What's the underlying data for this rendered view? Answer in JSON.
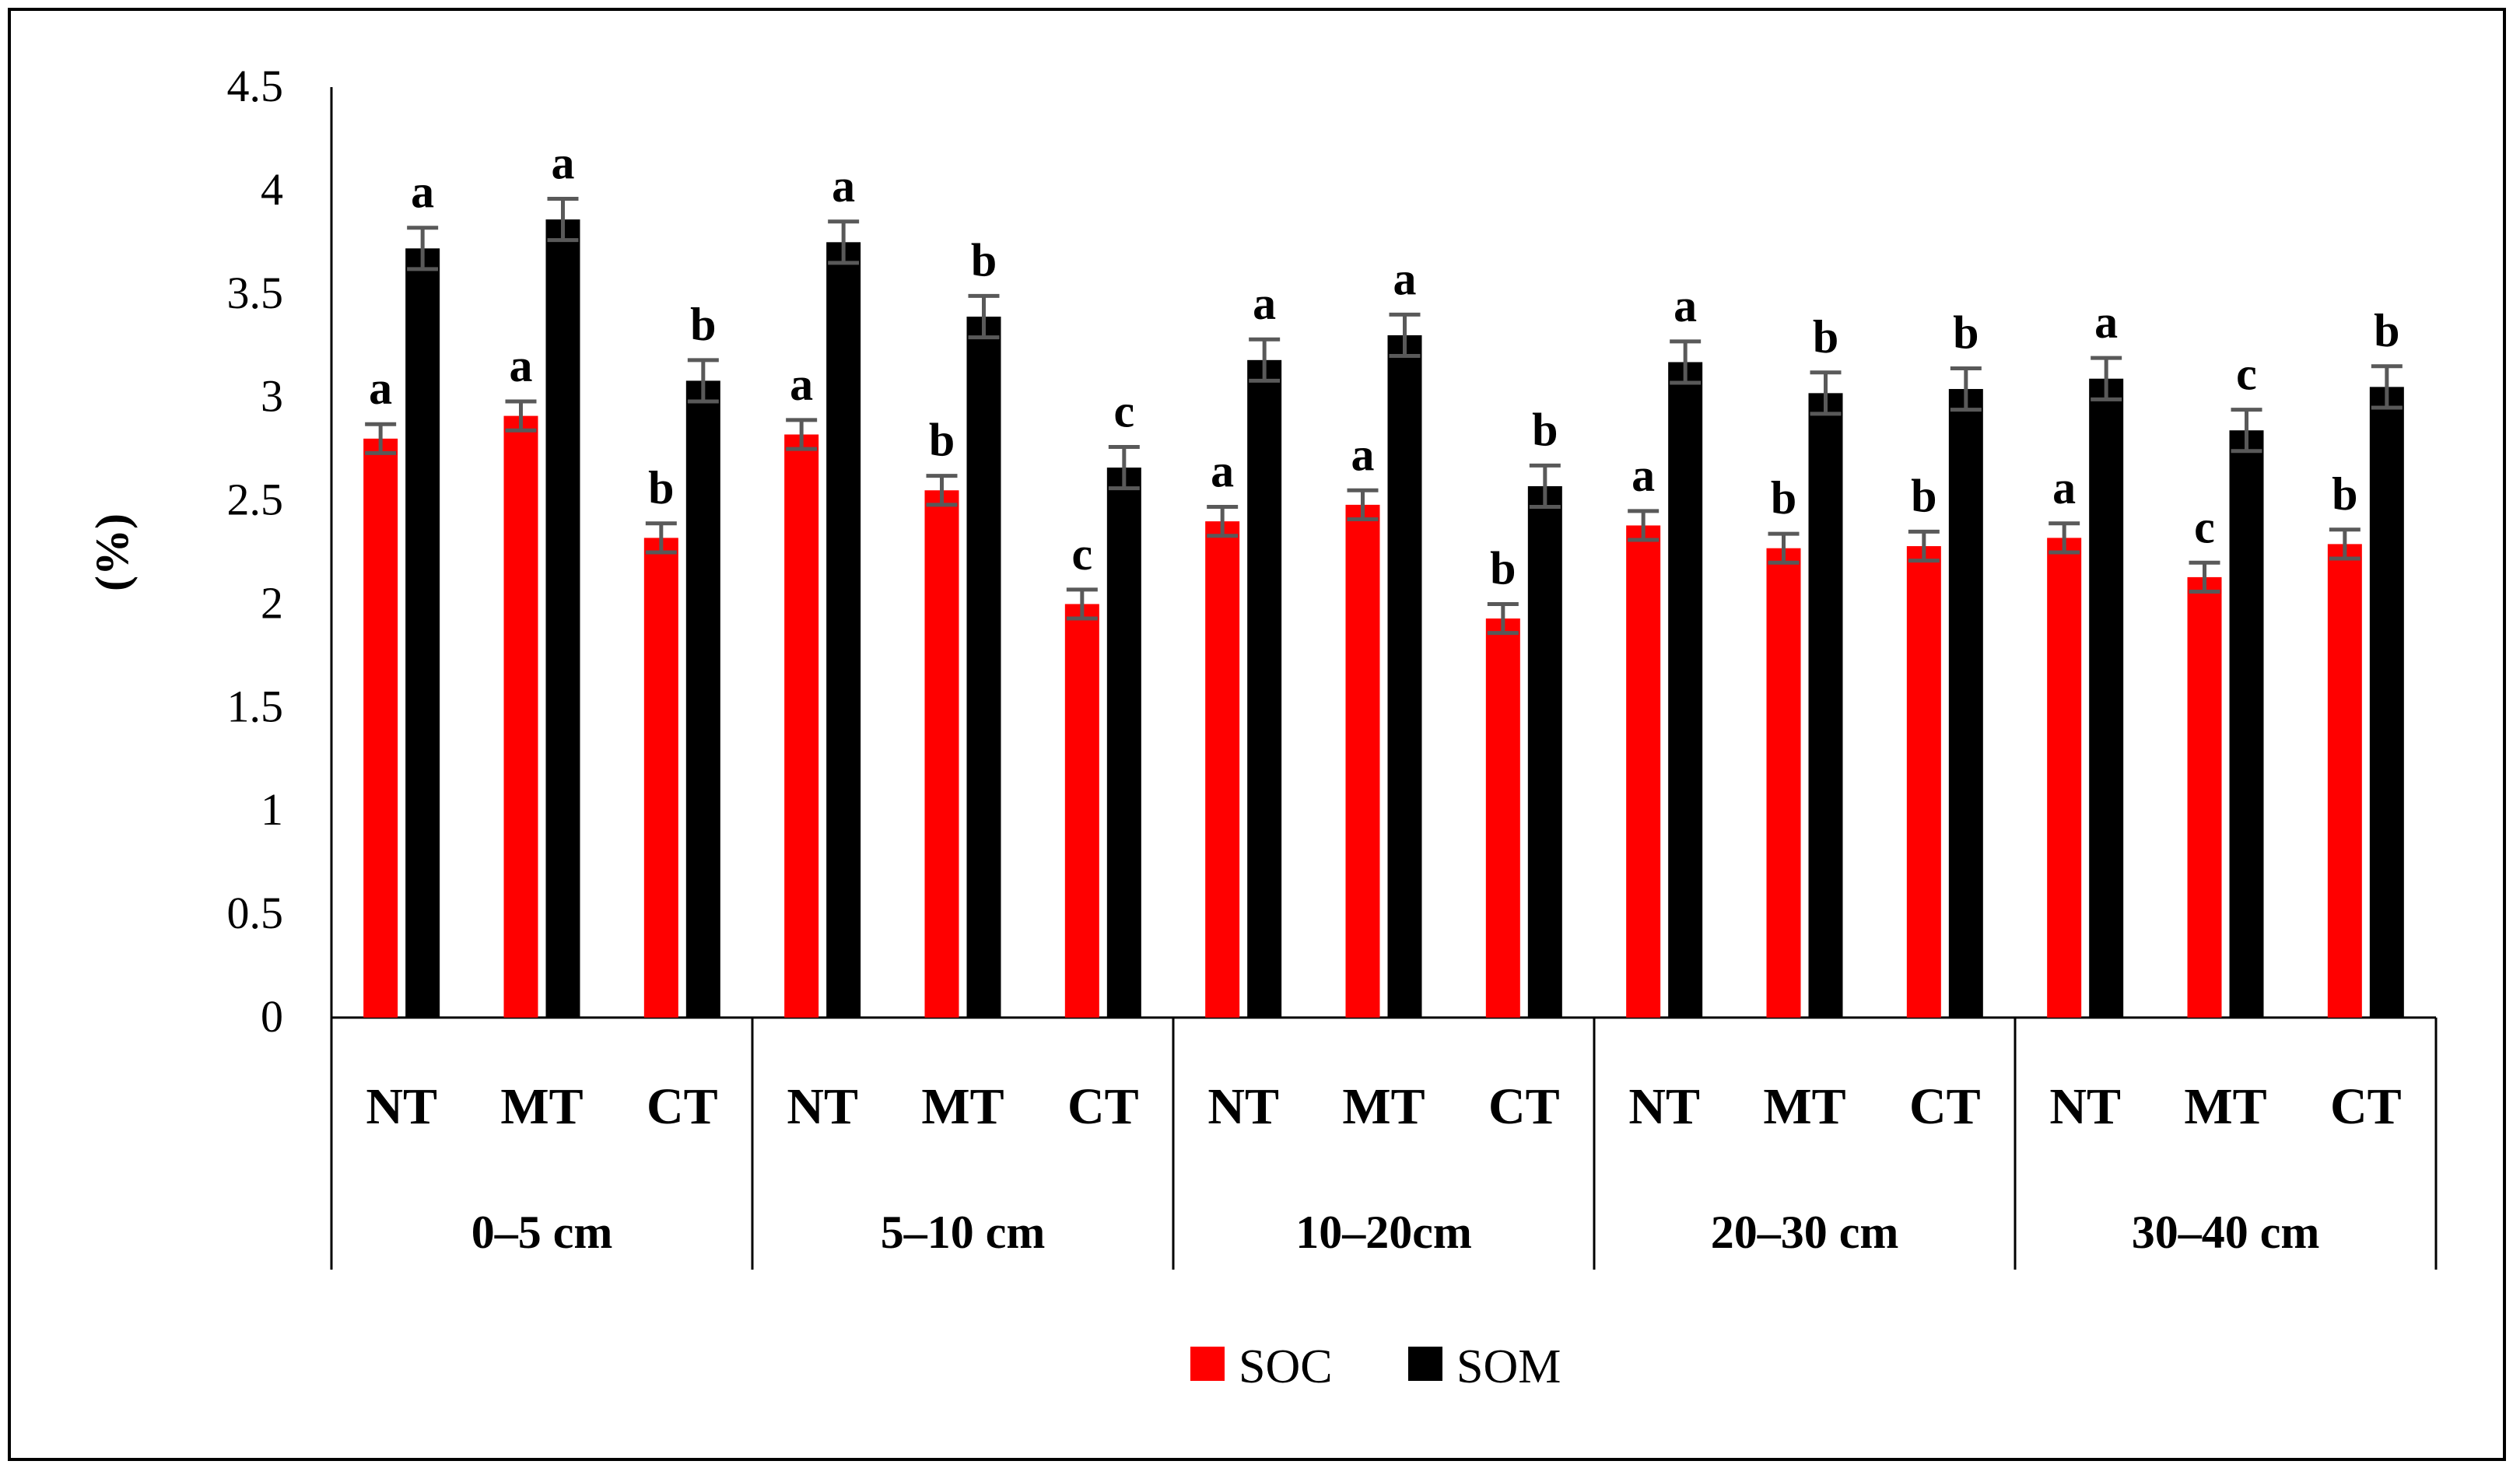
{
  "chart_data": {
    "type": "bar",
    "ylabel": "(%)",
    "ylim": [
      0,
      4.5
    ],
    "yticks": [
      "0",
      "0.5",
      "1",
      "1.5",
      "2",
      "2.5",
      "3",
      "3.5",
      "4",
      "4.5"
    ],
    "groups": [
      {
        "label": "0–5 cm",
        "treatments": [
          {
            "label": "NT",
            "soc": 2.8,
            "soc_err": 0.07,
            "soc_letter": "a",
            "som": 3.72,
            "som_err": 0.1,
            "som_letter": "a"
          },
          {
            "label": "MT",
            "soc": 2.91,
            "soc_err": 0.07,
            "soc_letter": "a",
            "som": 3.86,
            "som_err": 0.1,
            "som_letter": "a"
          },
          {
            "label": "CT",
            "soc": 2.32,
            "soc_err": 0.07,
            "soc_letter": "b",
            "som": 3.08,
            "som_err": 0.1,
            "som_letter": "b"
          }
        ]
      },
      {
        "label": "5–10 cm",
        "treatments": [
          {
            "label": "NT",
            "soc": 2.82,
            "soc_err": 0.07,
            "soc_letter": "a",
            "som": 3.75,
            "som_err": 0.1,
            "som_letter": "a"
          },
          {
            "label": "MT",
            "soc": 2.55,
            "soc_err": 0.07,
            "soc_letter": "b",
            "som": 3.39,
            "som_err": 0.1,
            "som_letter": "b"
          },
          {
            "label": "CT",
            "soc": 2.0,
            "soc_err": 0.07,
            "soc_letter": "c",
            "som": 2.66,
            "som_err": 0.1,
            "som_letter": "c"
          }
        ]
      },
      {
        "label": "10–20cm",
        "treatments": [
          {
            "label": "NT",
            "soc": 2.4,
            "soc_err": 0.07,
            "soc_letter": "a",
            "som": 3.18,
            "som_err": 0.1,
            "som_letter": "a"
          },
          {
            "label": "MT",
            "soc": 2.48,
            "soc_err": 0.07,
            "soc_letter": "a",
            "som": 3.3,
            "som_err": 0.1,
            "som_letter": "a"
          },
          {
            "label": "CT",
            "soc": 1.93,
            "soc_err": 0.07,
            "soc_letter": "b",
            "som": 2.57,
            "som_err": 0.1,
            "som_letter": "b"
          }
        ]
      },
      {
        "label": "20–30 cm",
        "treatments": [
          {
            "label": "NT",
            "soc": 2.38,
            "soc_err": 0.07,
            "soc_letter": "a",
            "som": 3.17,
            "som_err": 0.1,
            "som_letter": "a"
          },
          {
            "label": "MT",
            "soc": 2.27,
            "soc_err": 0.07,
            "soc_letter": "b",
            "som": 3.02,
            "som_err": 0.1,
            "som_letter": "b"
          },
          {
            "label": "CT",
            "soc": 2.28,
            "soc_err": 0.07,
            "soc_letter": "b",
            "som": 3.04,
            "som_err": 0.1,
            "som_letter": "b"
          }
        ]
      },
      {
        "label": "30–40 cm",
        "treatments": [
          {
            "label": "NT",
            "soc": 2.32,
            "soc_err": 0.07,
            "soc_letter": "a",
            "som": 3.09,
            "som_err": 0.1,
            "som_letter": "a"
          },
          {
            "label": "MT",
            "soc": 2.13,
            "soc_err": 0.07,
            "soc_letter": "c",
            "som": 2.84,
            "som_err": 0.1,
            "som_letter": "c"
          },
          {
            "label": "CT",
            "soc": 2.29,
            "soc_err": 0.07,
            "soc_letter": "b",
            "som": 3.05,
            "som_err": 0.1,
            "som_letter": "b"
          }
        ]
      }
    ],
    "series": [
      {
        "name": "SOC",
        "color": "#ff0000"
      },
      {
        "name": "SOM",
        "color": "#000000"
      }
    ],
    "error_bar_color": "#595959",
    "grid": false,
    "legend_position": "bottom-center"
  }
}
